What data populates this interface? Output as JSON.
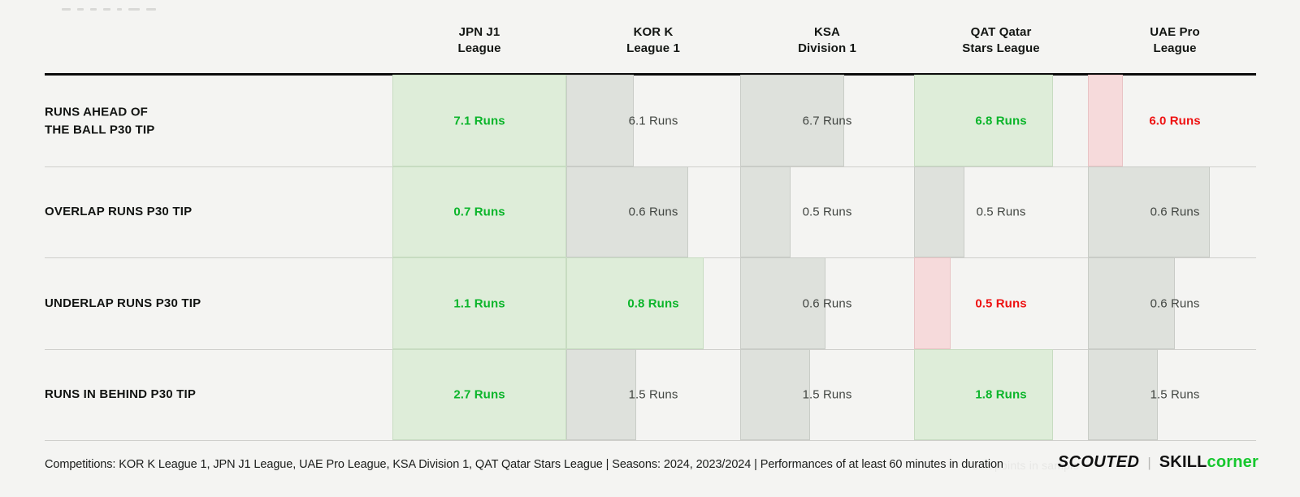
{
  "title_placeholder": {
    "dash_widths": [
      11,
      8,
      8,
      9,
      6,
      14,
      12
    ]
  },
  "columns": [
    {
      "lines": [
        "JPN J1",
        "League"
      ]
    },
    {
      "lines": [
        "KOR K",
        "League 1"
      ]
    },
    {
      "lines": [
        "KSA",
        "Division 1"
      ]
    },
    {
      "lines": [
        "QAT Qatar",
        "Stars League"
      ]
    },
    {
      "lines": [
        "UAE Pro",
        "League"
      ]
    }
  ],
  "rows": [
    {
      "label_lines": [
        "RUNS AHEAD OF",
        "THE BALL P30 TIP"
      ],
      "cells": [
        {
          "value": "7.1 Runs",
          "state": "high",
          "band": 1.0
        },
        {
          "value": "6.1 Runs",
          "state": "neutral",
          "band": 0.39
        },
        {
          "value": "6.7 Runs",
          "state": "neutral",
          "band": 0.6
        },
        {
          "value": "6.8 Runs",
          "state": "high",
          "band": 0.8
        },
        {
          "value": "6.0 Runs",
          "state": "low",
          "band": 0.2
        }
      ]
    },
    {
      "label_lines": [
        "OVERLAP RUNS P30 TIP"
      ],
      "cells": [
        {
          "value": "0.7 Runs",
          "state": "high",
          "band": 1.0
        },
        {
          "value": "0.6 Runs",
          "state": "neutral",
          "band": 0.7
        },
        {
          "value": "0.5 Runs",
          "state": "neutral",
          "band": 0.29
        },
        {
          "value": "0.5 Runs",
          "state": "neutral",
          "band": 0.29
        },
        {
          "value": "0.6 Runs",
          "state": "neutral",
          "band": 0.7
        }
      ]
    },
    {
      "label_lines": [
        "UNDERLAP RUNS P30 TIP"
      ],
      "cells": [
        {
          "value": "1.1 Runs",
          "state": "high",
          "band": 1.0
        },
        {
          "value": "0.8 Runs",
          "state": "high",
          "band": 0.79
        },
        {
          "value": "0.6 Runs",
          "state": "neutral",
          "band": 0.49
        },
        {
          "value": "0.5 Runs",
          "state": "low",
          "band": 0.21
        },
        {
          "value": "0.6 Runs",
          "state": "neutral",
          "band": 0.5
        }
      ]
    },
    {
      "label_lines": [
        "RUNS IN BEHIND P30 TIP"
      ],
      "cells": [
        {
          "value": "2.7 Runs",
          "state": "high",
          "band": 1.0
        },
        {
          "value": "1.5 Runs",
          "state": "neutral",
          "band": 0.4
        },
        {
          "value": "1.5 Runs",
          "state": "neutral",
          "band": 0.4
        },
        {
          "value": "1.8 Runs",
          "state": "high",
          "band": 0.8
        },
        {
          "value": "1.5 Runs",
          "state": "neutral",
          "band": 0.4
        }
      ]
    }
  ],
  "footer": {
    "info": "Competitions: KOR K League 1, JPN J1 League, UAE Pro League, KSA Division 1, QAT Qatar Stars League | Seasons: 2024, 2023/2024 | Performances of at least 60 minutes in duration",
    "watermark": "datapoints in sample",
    "scouted": "SCOUTED",
    "divider": "|",
    "skill": "SKILL",
    "corner": "corner"
  },
  "colors": {
    "positive_text": "#0cb52b",
    "negative_text": "#ee1212",
    "neutral_text": "#424642",
    "band_positive": "#deedd9",
    "band_neutral": "#dee1dc",
    "band_negative": "#f6dadb",
    "skillcorner_green": "#16c72e",
    "page_bg": "#f4f4f2"
  },
  "chart_data": {
    "type": "table",
    "title": "",
    "columns": [
      "JPN J1 League",
      "KOR K League 1",
      "KSA Division 1",
      "QAT Qatar Stars League",
      "UAE Pro League"
    ],
    "rows": [
      "RUNS AHEAD OF THE BALL P30 TIP",
      "OVERLAP RUNS P30 TIP",
      "UNDERLAP RUNS P30 TIP",
      "RUNS IN BEHIND P30 TIP"
    ],
    "unit": "Runs",
    "values": [
      [
        7.1,
        6.1,
        6.7,
        6.8,
        6.0
      ],
      [
        0.7,
        0.6,
        0.5,
        0.5,
        0.6
      ],
      [
        1.1,
        0.8,
        0.6,
        0.5,
        0.6
      ],
      [
        2.7,
        1.5,
        1.5,
        1.8,
        1.5
      ]
    ],
    "highlight": [
      [
        "high",
        "neutral",
        "neutral",
        "high",
        "low"
      ],
      [
        "high",
        "neutral",
        "neutral",
        "neutral",
        "neutral"
      ],
      [
        "high",
        "high",
        "neutral",
        "low",
        "neutral"
      ],
      [
        "high",
        "neutral",
        "neutral",
        "high",
        "neutral"
      ]
    ],
    "band_width_fraction_of_column": [
      [
        1.0,
        0.39,
        0.6,
        0.8,
        0.2
      ],
      [
        1.0,
        0.7,
        0.29,
        0.29,
        0.7
      ],
      [
        1.0,
        0.79,
        0.49,
        0.21,
        0.5
      ],
      [
        1.0,
        0.4,
        0.4,
        0.8,
        0.4
      ]
    ],
    "legend_position": "none",
    "grid": "row-dividers"
  }
}
